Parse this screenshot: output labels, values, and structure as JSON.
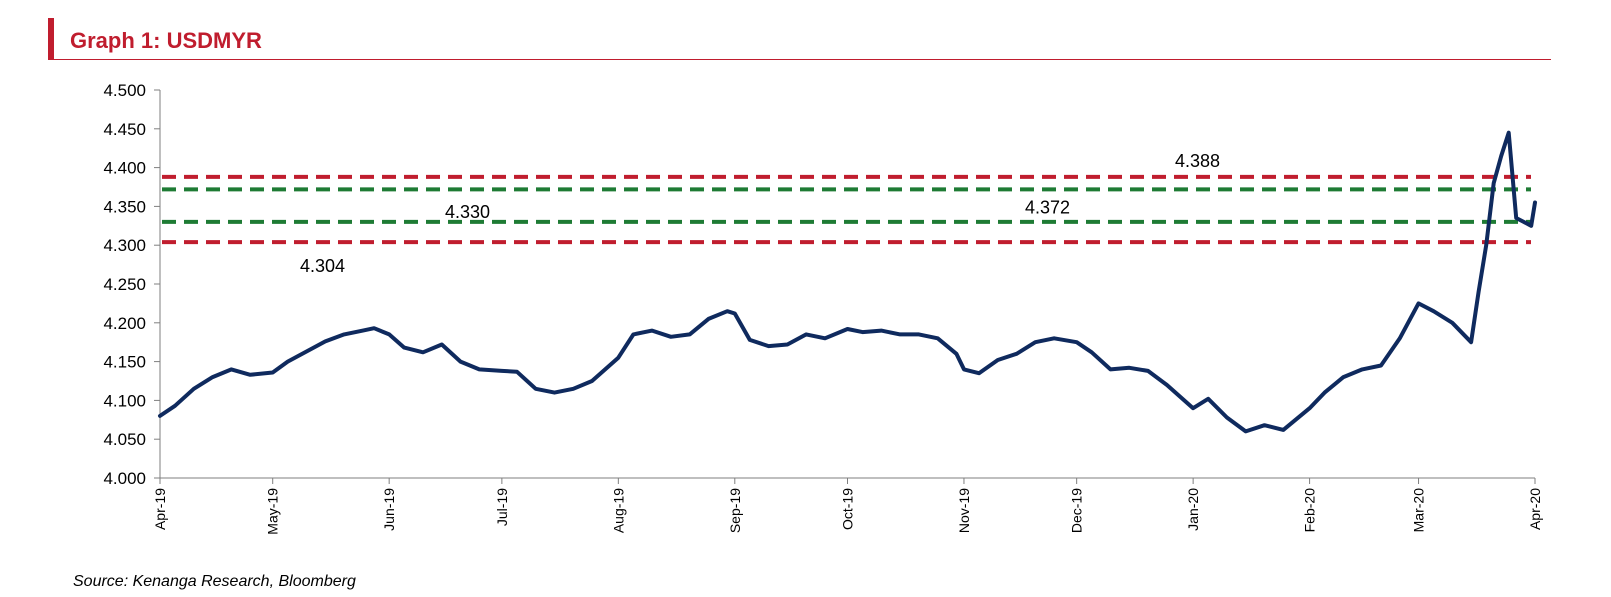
{
  "header": {
    "title": "Graph 1: USDMYR"
  },
  "footer": {
    "source": "Source: Kenanga Research, Bloomberg"
  },
  "colors": {
    "accent": "#c01d2e",
    "series": "#0f2a5e",
    "resistance": "#c01d2e",
    "support": "#1e7b34"
  },
  "chart_data": {
    "type": "line",
    "title": "Graph 1: USDMYR",
    "xlabel": "",
    "ylabel": "",
    "ylim": [
      4.0,
      4.5
    ],
    "yticks": [
      "4.500",
      "4.450",
      "4.400",
      "4.350",
      "4.300",
      "4.250",
      "4.200",
      "4.150",
      "4.100",
      "4.050",
      "4.000"
    ],
    "xticks": [
      "Apr-19",
      "May-19",
      "Jun-19",
      "Jul-19",
      "Aug-19",
      "Sep-19",
      "Oct-19",
      "Nov-19",
      "Dec-19",
      "Jan-20",
      "Feb-20",
      "Mar-20",
      "Apr-20"
    ],
    "grid": false,
    "legend": "none",
    "series": [
      {
        "x": [
          "2019-04-01",
          "2019-04-05",
          "2019-04-10",
          "2019-04-15",
          "2019-04-20",
          "2019-04-25",
          "2019-05-01",
          "2019-05-05",
          "2019-05-10",
          "2019-05-15",
          "2019-05-20",
          "2019-05-25",
          "2019-05-28",
          "2019-06-01",
          "2019-06-05",
          "2019-06-10",
          "2019-06-15",
          "2019-06-20",
          "2019-06-25",
          "2019-07-01",
          "2019-07-05",
          "2019-07-10",
          "2019-07-15",
          "2019-07-20",
          "2019-07-25",
          "2019-08-01",
          "2019-08-05",
          "2019-08-10",
          "2019-08-15",
          "2019-08-20",
          "2019-08-25",
          "2019-08-30",
          "2019-09-01",
          "2019-09-05",
          "2019-09-10",
          "2019-09-15",
          "2019-09-20",
          "2019-09-25",
          "2019-10-01",
          "2019-10-05",
          "2019-10-10",
          "2019-10-15",
          "2019-10-20",
          "2019-10-25",
          "2019-10-30",
          "2019-11-01",
          "2019-11-05",
          "2019-11-10",
          "2019-11-15",
          "2019-11-20",
          "2019-11-25",
          "2019-12-01",
          "2019-12-05",
          "2019-12-10",
          "2019-12-15",
          "2019-12-20",
          "2019-12-25",
          "2020-01-01",
          "2020-01-05",
          "2020-01-10",
          "2020-01-15",
          "2020-01-20",
          "2020-01-25",
          "2020-02-01",
          "2020-02-05",
          "2020-02-10",
          "2020-02-15",
          "2020-02-20",
          "2020-02-25",
          "2020-03-01",
          "2020-03-05",
          "2020-03-10",
          "2020-03-15",
          "2020-03-17",
          "2020-03-19",
          "2020-03-21",
          "2020-03-23",
          "2020-03-25",
          "2020-03-27",
          "2020-03-29",
          "2020-03-31",
          "2020-04-01"
        ],
        "y": [
          4.08,
          4.093,
          4.115,
          4.13,
          4.14,
          4.133,
          4.136,
          4.15,
          4.163,
          4.176,
          4.185,
          4.19,
          4.193,
          4.185,
          4.168,
          4.162,
          4.172,
          4.15,
          4.14,
          4.138,
          4.137,
          4.115,
          4.11,
          4.115,
          4.125,
          4.155,
          4.185,
          4.19,
          4.182,
          4.185,
          4.205,
          4.215,
          4.212,
          4.178,
          4.17,
          4.172,
          4.185,
          4.18,
          4.192,
          4.188,
          4.19,
          4.185,
          4.185,
          4.18,
          4.16,
          4.14,
          4.135,
          4.152,
          4.16,
          4.175,
          4.18,
          4.175,
          4.162,
          4.14,
          4.142,
          4.138,
          4.12,
          4.09,
          4.102,
          4.078,
          4.06,
          4.068,
          4.062,
          4.09,
          4.11,
          4.13,
          4.14,
          4.145,
          4.18,
          4.225,
          4.215,
          4.2,
          4.175,
          4.24,
          4.3,
          4.38,
          4.415,
          4.445,
          4.335,
          4.33,
          4.325,
          4.355
        ]
      }
    ],
    "levels": [
      {
        "value": 4.388,
        "label": "4.388",
        "kind": "resistance"
      },
      {
        "value": 4.372,
        "label": "4.372",
        "kind": "support"
      },
      {
        "value": 4.33,
        "label": "4.330",
        "kind": "support"
      },
      {
        "value": 4.304,
        "label": "4.304",
        "kind": "resistance"
      }
    ]
  }
}
